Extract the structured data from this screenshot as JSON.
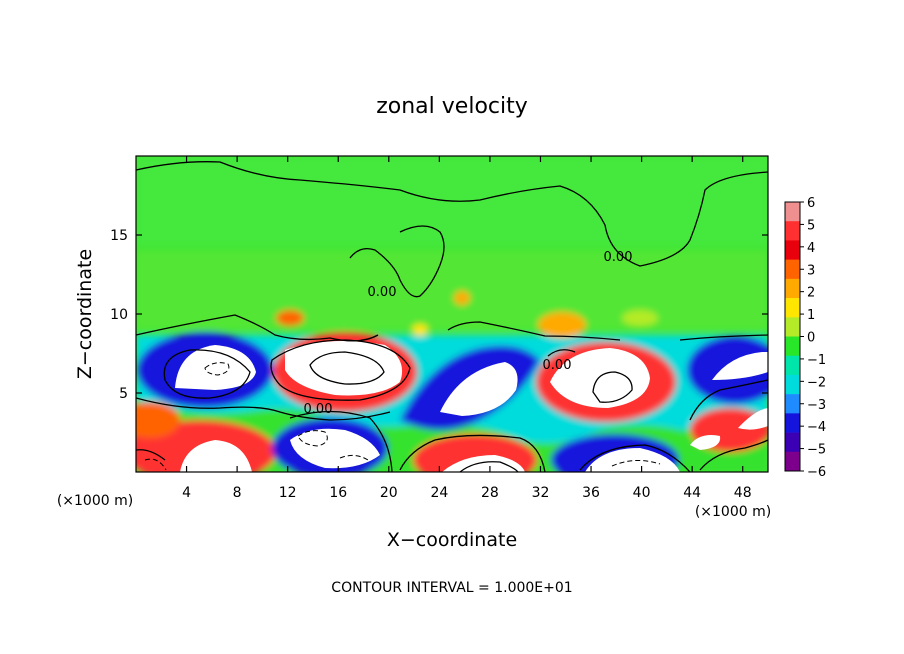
{
  "chart_data": {
    "type": "heatmap",
    "title": "zonal velocity",
    "xlabel": "X−coordinate",
    "ylabel": "Z−coordinate",
    "x_unit_left": "(×1000 m)",
    "x_unit_right": "(×1000 m)",
    "xlim": [
      0,
      50
    ],
    "ylim": [
      0,
      20
    ],
    "x_ticks": [
      4,
      8,
      12,
      16,
      20,
      24,
      28,
      32,
      36,
      40,
      44,
      48
    ],
    "y_ticks": [
      5,
      10,
      15
    ],
    "colorbar": {
      "min": -6,
      "max": 6,
      "ticks": [
        6,
        5,
        4,
        3,
        2,
        1,
        0,
        -1,
        -2,
        -3,
        -4,
        -5,
        -6
      ],
      "tick_labels": [
        "6",
        "5",
        "4",
        "3",
        "2",
        "1",
        "0",
        "−1",
        "−2",
        "−3",
        "−4",
        "−5",
        "−6"
      ],
      "colors": [
        "#f08f8f",
        "#ff3030",
        "#e8000c",
        "#ff6400",
        "#ffaa00",
        "#ffe600",
        "#b4eb28",
        "#28e628",
        "#00e6aa",
        "#00dcdc",
        "#1e8cff",
        "#1414dc",
        "#3c00b4",
        "#7d008c"
      ],
      "saturated_above": "#ffffff",
      "saturated_below": "#ffffff"
    },
    "contour_labels": [
      "0.00",
      "0.00",
      "0.00",
      "0.00"
    ],
    "contour_interval_text": "CONTOUR INTERVAL = 1.000E+01"
  }
}
